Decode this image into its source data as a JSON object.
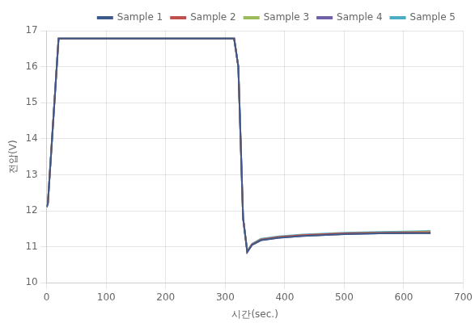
{
  "chart_data": {
    "type": "line",
    "xlabel": "시간(sec.)",
    "ylabel": "전압(V)",
    "xlim": [
      0,
      700
    ],
    "ylim": [
      10,
      17
    ],
    "xticks": [
      0,
      100,
      200,
      300,
      400,
      500,
      600,
      700
    ],
    "yticks": [
      10,
      11,
      12,
      13,
      14,
      15,
      16,
      17
    ],
    "grid": true,
    "legend": "upper right",
    "x": [
      0,
      2,
      20,
      315,
      322,
      330,
      337,
      345,
      360,
      390,
      430,
      500,
      560,
      620,
      645
    ],
    "series": [
      {
        "name": "Sample 1",
        "color": "#3d5a8a",
        "values": [
          12.1,
          12.2,
          16.78,
          16.78,
          16.0,
          11.8,
          10.85,
          11.05,
          11.18,
          11.25,
          11.3,
          11.35,
          11.37,
          11.38,
          11.38
        ]
      },
      {
        "name": "Sample 2",
        "color": "#c0504d",
        "values": [
          12.1,
          12.2,
          16.78,
          16.78,
          16.0,
          11.8,
          10.87,
          11.07,
          11.2,
          11.27,
          11.32,
          11.37,
          11.39,
          11.4,
          11.4
        ]
      },
      {
        "name": "Sample 3",
        "color": "#9bbb59",
        "values": [
          12.1,
          12.2,
          16.78,
          16.78,
          16.0,
          11.8,
          10.87,
          11.07,
          11.2,
          11.27,
          11.32,
          11.37,
          11.39,
          11.41,
          11.42
        ]
      },
      {
        "name": "Sample 4",
        "color": "#7060a8",
        "values": [
          12.1,
          12.2,
          16.78,
          16.78,
          16.0,
          11.8,
          10.85,
          11.05,
          11.18,
          11.25,
          11.3,
          11.35,
          11.37,
          11.38,
          11.38
        ]
      },
      {
        "name": "Sample 5",
        "color": "#4bacc6",
        "values": [
          12.1,
          12.2,
          16.78,
          16.78,
          16.0,
          11.8,
          10.88,
          11.08,
          11.22,
          11.29,
          11.34,
          11.39,
          11.41,
          11.43,
          11.44
        ]
      }
    ]
  }
}
